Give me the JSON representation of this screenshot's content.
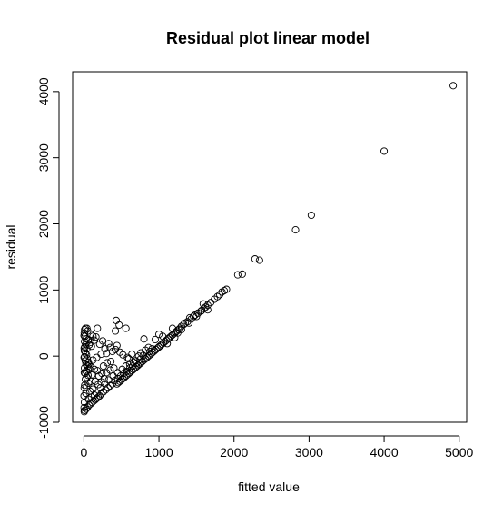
{
  "chart_data": {
    "type": "scatter",
    "title": "Residual plot linear model",
    "xlabel": "fitted value",
    "ylabel": "residual",
    "xlim": [
      -150,
      5100
    ],
    "ylim": [
      -1000,
      4300
    ],
    "x_ticks": [
      0,
      1000,
      2000,
      3000,
      4000,
      5000
    ],
    "x_tick_labels": [
      "0",
      "1000",
      "2000",
      "3000",
      "4000",
      "5000"
    ],
    "y_ticks": [
      -1000,
      0,
      1000,
      2000,
      3000,
      4000
    ],
    "y_tick_labels": [
      "-1000",
      "0",
      "1000",
      "2000",
      "3000",
      "4000"
    ],
    "grid": false,
    "legend": "none",
    "marker": "open-circle",
    "color": "#000000",
    "points": [
      [
        4920,
        4090
      ],
      [
        4000,
        3100
      ],
      [
        3030,
        2130
      ],
      [
        2820,
        1910
      ],
      [
        2340,
        1450
      ],
      [
        2280,
        1470
      ],
      [
        2110,
        1240
      ],
      [
        2050,
        1230
      ],
      [
        1900,
        1010
      ],
      [
        1870,
        990
      ],
      [
        1840,
        970
      ],
      [
        1810,
        930
      ],
      [
        1780,
        900
      ],
      [
        1740,
        860
      ],
      [
        1690,
        810
      ],
      [
        1650,
        770
      ],
      [
        1620,
        740
      ],
      [
        1600,
        720
      ],
      [
        1590,
        790
      ],
      [
        1560,
        680
      ],
      [
        1520,
        650
      ],
      [
        1480,
        620
      ],
      [
        1460,
        600
      ],
      [
        1430,
        560
      ],
      [
        1410,
        580
      ],
      [
        1380,
        520
      ],
      [
        1350,
        500
      ],
      [
        1330,
        480
      ],
      [
        1300,
        450
      ],
      [
        1280,
        420
      ],
      [
        1260,
        400
      ],
      [
        1240,
        380
      ],
      [
        1220,
        360
      ],
      [
        1200,
        340
      ],
      [
        1180,
        320
      ],
      [
        1160,
        300
      ],
      [
        1140,
        280
      ],
      [
        1120,
        260
      ],
      [
        1100,
        240
      ],
      [
        1080,
        220
      ],
      [
        1060,
        200
      ],
      [
        1040,
        180
      ],
      [
        1020,
        160
      ],
      [
        1000,
        140
      ],
      [
        980,
        120
      ],
      [
        960,
        100
      ],
      [
        940,
        80
      ],
      [
        920,
        60
      ],
      [
        900,
        40
      ],
      [
        880,
        20
      ],
      [
        860,
        0
      ],
      [
        840,
        -20
      ],
      [
        820,
        -40
      ],
      [
        800,
        -60
      ],
      [
        780,
        -80
      ],
      [
        760,
        -100
      ],
      [
        740,
        -120
      ],
      [
        720,
        -140
      ],
      [
        700,
        -160
      ],
      [
        680,
        -180
      ],
      [
        660,
        -200
      ],
      [
        640,
        -220
      ],
      [
        620,
        -240
      ],
      [
        600,
        -260
      ],
      [
        580,
        -280
      ],
      [
        560,
        -300
      ],
      [
        540,
        -320
      ],
      [
        520,
        -340
      ],
      [
        500,
        -360
      ],
      [
        480,
        -380
      ],
      [
        460,
        -400
      ],
      [
        440,
        -420
      ],
      [
        1180,
        420
      ],
      [
        1250,
        350
      ],
      [
        1050,
        300
      ],
      [
        1000,
        330
      ],
      [
        950,
        250
      ],
      [
        1300,
        400
      ],
      [
        1400,
        500
      ],
      [
        1500,
        600
      ],
      [
        1570,
        690
      ],
      [
        1650,
        700
      ],
      [
        1210,
        280
      ],
      [
        1110,
        190
      ],
      [
        880,
        70
      ],
      [
        910,
        110
      ],
      [
        790,
        10
      ],
      [
        750,
        -50
      ],
      [
        700,
        -110
      ],
      [
        650,
        -150
      ],
      [
        610,
        -180
      ],
      [
        570,
        -230
      ],
      [
        530,
        -260
      ],
      [
        490,
        -300
      ],
      [
        450,
        -340
      ],
      [
        410,
        -370
      ],
      [
        380,
        -420
      ],
      [
        350,
        -450
      ],
      [
        320,
        -480
      ],
      [
        290,
        -510
      ],
      [
        260,
        -540
      ],
      [
        230,
        -570
      ],
      [
        210,
        -600
      ],
      [
        190,
        -620
      ],
      [
        170,
        -640
      ],
      [
        150,
        -660
      ],
      [
        130,
        -680
      ],
      [
        110,
        -700
      ],
      [
        90,
        -720
      ],
      [
        70,
        -740
      ],
      [
        50,
        -770
      ],
      [
        30,
        -800
      ],
      [
        10,
        -820
      ],
      [
        5,
        -840
      ],
      [
        430,
        540
      ],
      [
        470,
        470
      ],
      [
        560,
        420
      ],
      [
        420,
        380
      ],
      [
        800,
        260
      ],
      [
        180,
        420
      ],
      [
        330,
        190
      ],
      [
        440,
        160
      ],
      [
        380,
        70
      ],
      [
        300,
        40
      ],
      [
        250,
        230
      ],
      [
        210,
        180
      ],
      [
        160,
        290
      ],
      [
        140,
        240
      ],
      [
        120,
        300
      ],
      [
        90,
        210
      ],
      [
        70,
        170
      ],
      [
        50,
        380
      ],
      [
        20,
        420
      ],
      [
        10,
        400
      ],
      [
        5,
        350
      ],
      [
        15,
        300
      ],
      [
        30,
        260
      ],
      [
        8,
        220
      ],
      [
        25,
        180
      ],
      [
        12,
        140
      ],
      [
        40,
        110
      ],
      [
        6,
        80
      ],
      [
        22,
        50
      ],
      [
        35,
        20
      ],
      [
        10,
        -10
      ],
      [
        45,
        -40
      ],
      [
        18,
        -70
      ],
      [
        60,
        -90
      ],
      [
        28,
        -120
      ],
      [
        50,
        -150
      ],
      [
        8,
        -180
      ],
      [
        75,
        -200
      ],
      [
        30,
        -230
      ],
      [
        15,
        -260
      ],
      [
        55,
        -290
      ],
      [
        40,
        -320
      ],
      [
        20,
        -350
      ],
      [
        95,
        -380
      ],
      [
        60,
        -410
      ],
      [
        10,
        -440
      ],
      [
        35,
        -470
      ],
      [
        120,
        -500
      ],
      [
        80,
        -530
      ],
      [
        25,
        -560
      ],
      [
        140,
        -590
      ],
      [
        100,
        -620
      ],
      [
        60,
        -650
      ],
      [
        170,
        -560
      ],
      [
        220,
        -480
      ],
      [
        280,
        -420
      ],
      [
        330,
        -360
      ],
      [
        390,
        -300
      ],
      [
        450,
        -250
      ],
      [
        510,
        -200
      ],
      [
        560,
        -150
      ],
      [
        610,
        -120
      ],
      [
        660,
        -90
      ],
      [
        200,
        -300
      ],
      [
        240,
        -260
      ],
      [
        180,
        -220
      ],
      [
        300,
        -250
      ],
      [
        350,
        -210
      ],
      [
        400,
        -180
      ],
      [
        260,
        -150
      ],
      [
        310,
        -100
      ],
      [
        360,
        -80
      ],
      [
        150,
        -380
      ],
      [
        190,
        -430
      ],
      [
        230,
        -390
      ],
      [
        270,
        -340
      ],
      [
        110,
        -280
      ],
      [
        140,
        -200
      ],
      [
        90,
        -160
      ],
      [
        65,
        -120
      ],
      [
        120,
        -60
      ],
      [
        170,
        -20
      ],
      [
        230,
        30
      ],
      [
        280,
        110
      ],
      [
        350,
        130
      ],
      [
        420,
        100
      ],
      [
        480,
        60
      ],
      [
        520,
        20
      ],
      [
        600,
        -40
      ],
      [
        690,
        -70
      ],
      [
        730,
        0
      ],
      [
        760,
        50
      ],
      [
        820,
        90
      ],
      [
        860,
        130
      ],
      [
        640,
        30
      ],
      [
        580,
        -20
      ],
      [
        40,
        420
      ],
      [
        2,
        310
      ],
      [
        4,
        120
      ],
      [
        3,
        -20
      ],
      [
        6,
        -250
      ],
      [
        4,
        -480
      ],
      [
        2,
        -600
      ],
      [
        7,
        -700
      ],
      [
        3,
        -780
      ],
      [
        90,
        330
      ],
      [
        60,
        250
      ],
      [
        100,
        150
      ]
    ]
  }
}
